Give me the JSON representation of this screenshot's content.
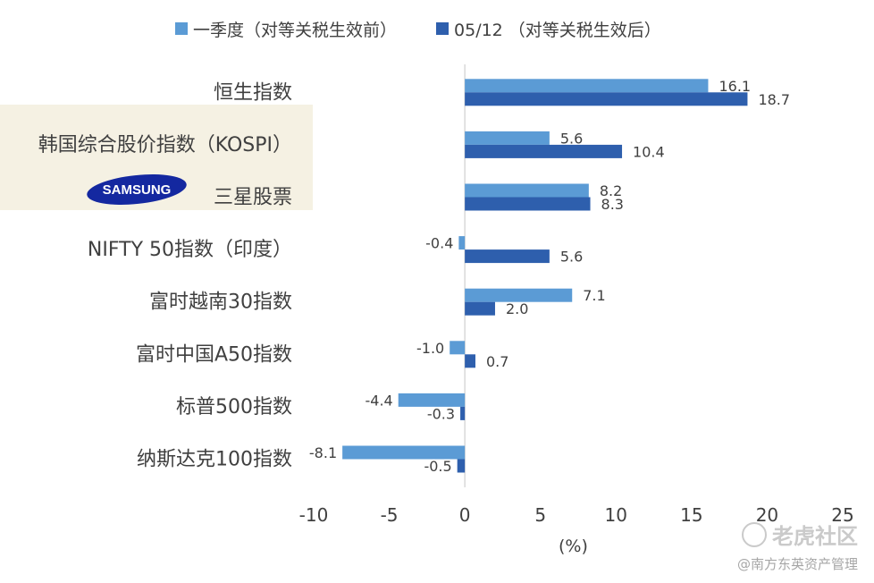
{
  "legend": {
    "series1": "一季度（对等关税生效前）",
    "series2": "05/12 （对等关税生效后）"
  },
  "colors": {
    "series1": "#5b9bd5",
    "series2": "#2e5fad",
    "highlight": "#f5f1e3",
    "axis": "#d9d9d9",
    "text": "#404040"
  },
  "logo": {
    "text": "SAMSUNG"
  },
  "watermark": {
    "brand": "老虎社区",
    "credit": "@南方东英资产管理"
  },
  "chart_data": {
    "type": "bar",
    "orientation": "horizontal",
    "categories": [
      "恒生指数",
      "韩国综合股价指数（KOSPI）",
      "三星股票",
      "NIFTY 50指数（印度）",
      "富时越南30指数",
      "富时中国A50指数",
      "标普500指数",
      "纳斯达克100指数"
    ],
    "series": [
      {
        "name": "一季度（对等关税生效前）",
        "values": [
          16.1,
          5.6,
          8.2,
          -0.4,
          7.1,
          -1.0,
          -4.4,
          -8.1
        ],
        "labels": [
          "16.1",
          "5.6",
          "8.2",
          "-0.4",
          "7.1",
          "-1.0",
          "-4.4",
          "-8.1"
        ]
      },
      {
        "name": "05/12 （对等关税生效后）",
        "values": [
          18.7,
          10.4,
          8.3,
          5.6,
          2.0,
          0.7,
          -0.3,
          -0.5
        ],
        "labels": [
          "18.7",
          "10.4",
          "8.3",
          "5.6",
          "2.0",
          "0.7",
          "-0.3",
          "-0.5"
        ]
      }
    ],
    "xlim": [
      -10,
      25
    ],
    "xticks": [
      -10,
      -5,
      0,
      5,
      10,
      15,
      20,
      25
    ],
    "xlabel": "(%)",
    "grid": false,
    "legend_position": "top"
  }
}
